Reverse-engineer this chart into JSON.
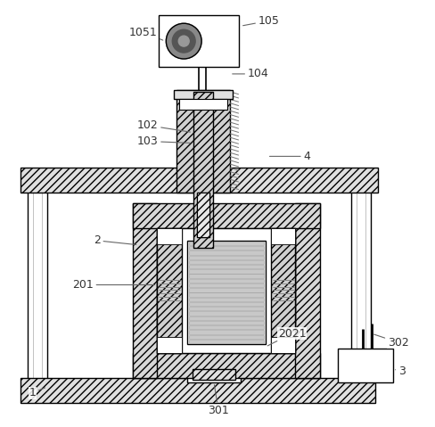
{
  "bg_color": "#ffffff",
  "line_color": "#000000",
  "label_color": "#333333",
  "figsize": [
    4.88,
    4.79
  ],
  "dpi": 100
}
